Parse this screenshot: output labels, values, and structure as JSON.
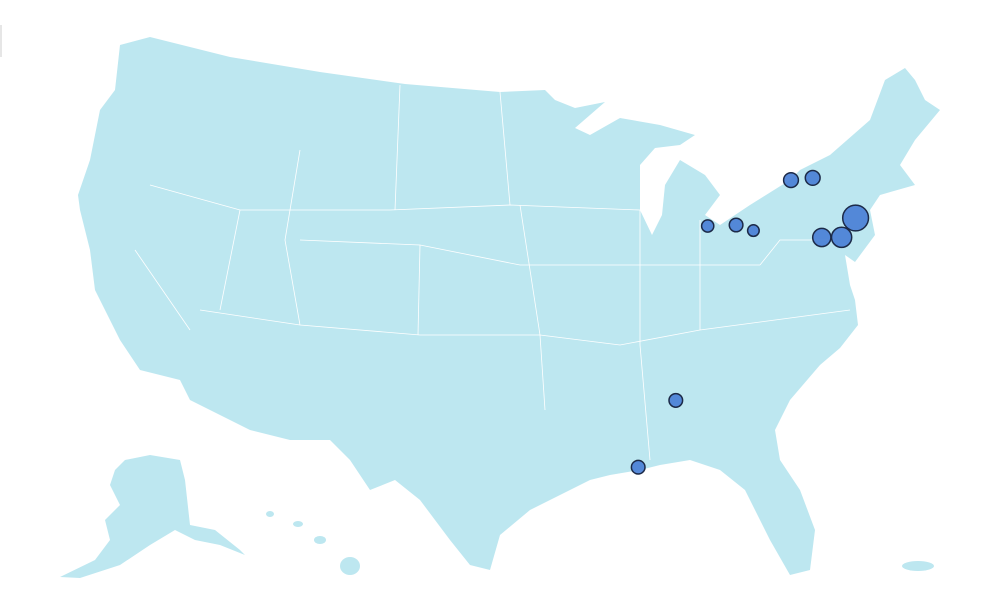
{
  "map": {
    "land_color": "#bde7f0",
    "border_color": "#ffffff",
    "bubble_color": "#4a80d6",
    "bubble_stroke": "#1c2a48",
    "bubbles": [
      {
        "lon": -77.6,
        "lat": 43.16,
        "value": 3
      },
      {
        "lon": -76.15,
        "lat": 43.05,
        "value": 3
      },
      {
        "lon": -83.55,
        "lat": 41.65,
        "value": 2
      },
      {
        "lon": -81.7,
        "lat": 41.5,
        "value": 2.5
      },
      {
        "lon": -80.65,
        "lat": 41.1,
        "value": 1.8
      },
      {
        "lon": -76.4,
        "lat": 40.15,
        "value": 4.5
      },
      {
        "lon": -75.16,
        "lat": 39.95,
        "value": 5.5
      },
      {
        "lon": -74.0,
        "lat": 40.7,
        "value": 9
      },
      {
        "lon": -86.8,
        "lat": 33.5,
        "value": 2.5
      },
      {
        "lon": -89.3,
        "lat": 30.45,
        "value": 2.5
      }
    ]
  }
}
